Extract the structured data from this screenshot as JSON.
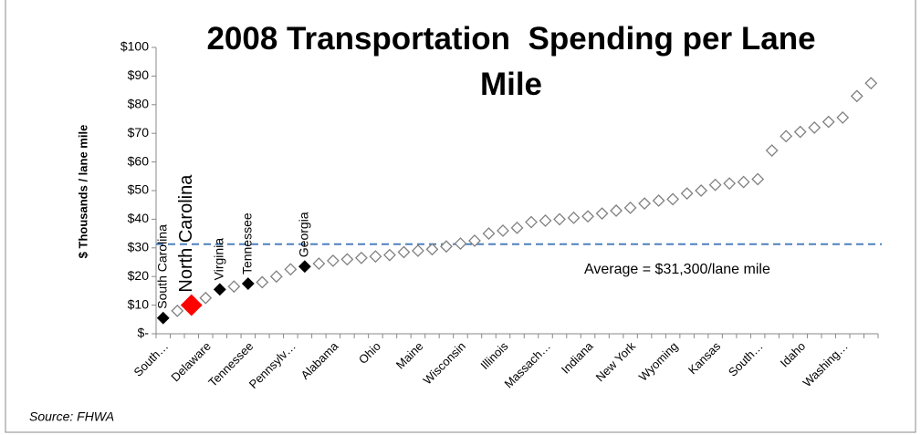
{
  "chart_data": {
    "type": "scatter",
    "title": "2008 Transportation  Spending per Lane Mile",
    "y_axis_label": "$ Thousands / lane mile",
    "source": "Source: FHWA",
    "categories": [
      "South…",
      null,
      null,
      "Delaware",
      null,
      null,
      "Tennessee",
      null,
      null,
      "Pennsylv…",
      null,
      null,
      "Alabama",
      null,
      null,
      "Ohio",
      null,
      null,
      "Maine",
      null,
      null,
      "Wisconsin",
      null,
      null,
      "Illinois",
      null,
      null,
      "Massach…",
      null,
      null,
      "Indiana",
      null,
      null,
      "New York",
      null,
      null,
      "Wyoming",
      null,
      null,
      "Kansas",
      null,
      null,
      "South…",
      null,
      null,
      "Idaho",
      null,
      null,
      "Washing…",
      null,
      null
    ],
    "values": [
      5.5,
      8,
      10,
      12.5,
      15.5,
      16.5,
      17.5,
      18,
      20,
      22.5,
      23.5,
      24.5,
      25.5,
      26,
      26.5,
      27,
      27.5,
      28.5,
      29,
      29.5,
      30.5,
      31.5,
      32.5,
      35,
      36,
      37,
      39,
      39.5,
      40,
      40.5,
      41,
      42,
      43,
      44,
      45.5,
      46.5,
      47,
      49,
      50,
      52,
      52.5,
      53,
      54,
      64,
      69,
      70.5,
      72,
      74,
      75.5,
      83,
      87.5
    ],
    "point_labels": [
      "South Carolina",
      null,
      "North Carolina",
      null,
      "Virginia",
      null,
      "Tennessee",
      null,
      null,
      null,
      "Georgia",
      null,
      null,
      null,
      null,
      null,
      null,
      null,
      null,
      null,
      null,
      null,
      null,
      null,
      null,
      null,
      null,
      null,
      null,
      null,
      null,
      null,
      null,
      null,
      null,
      null,
      null,
      null,
      null,
      null,
      null,
      null,
      null,
      null,
      null,
      null,
      null,
      null,
      null,
      null,
      null
    ],
    "point_colors": [
      "#000000",
      "#ffffff",
      "#ff0000",
      "#ffffff",
      "#000000",
      "#ffffff",
      "#000000",
      "#ffffff",
      "#ffffff",
      "#ffffff",
      "#000000",
      "#ffffff",
      "#ffffff",
      "#ffffff",
      "#ffffff",
      "#ffffff",
      "#ffffff",
      "#ffffff",
      "#ffffff",
      "#ffffff",
      "#ffffff",
      "#ffffff",
      "#ffffff",
      "#ffffff",
      "#ffffff",
      "#ffffff",
      "#ffffff",
      "#ffffff",
      "#ffffff",
      "#ffffff",
      "#ffffff",
      "#ffffff",
      "#ffffff",
      "#ffffff",
      "#ffffff",
      "#ffffff",
      "#ffffff",
      "#ffffff",
      "#ffffff",
      "#ffffff",
      "#ffffff",
      "#ffffff",
      "#ffffff",
      "#ffffff",
      "#ffffff",
      "#ffffff",
      "#ffffff",
      "#ffffff",
      "#ffffff",
      "#ffffff",
      "#ffffff"
    ],
    "reference_line": {
      "value": 31.3,
      "label": "Average = $31,300/lane mile",
      "color": "#4f81bd"
    },
    "ylim": [
      0,
      100
    ],
    "yticks": [
      {
        "value": 0,
        "label": "$-"
      },
      {
        "value": 10,
        "label": "$10"
      },
      {
        "value": 20,
        "label": "$20"
      },
      {
        "value": 30,
        "label": "$30"
      },
      {
        "value": 40,
        "label": "$40"
      },
      {
        "value": 50,
        "label": "$50"
      },
      {
        "value": 60,
        "label": "$60"
      },
      {
        "value": 70,
        "label": "$70"
      },
      {
        "value": 80,
        "label": "$80"
      },
      {
        "value": 90,
        "label": "$90"
      },
      {
        "value": 100,
        "label": "$100"
      }
    ],
    "grid": false
  }
}
